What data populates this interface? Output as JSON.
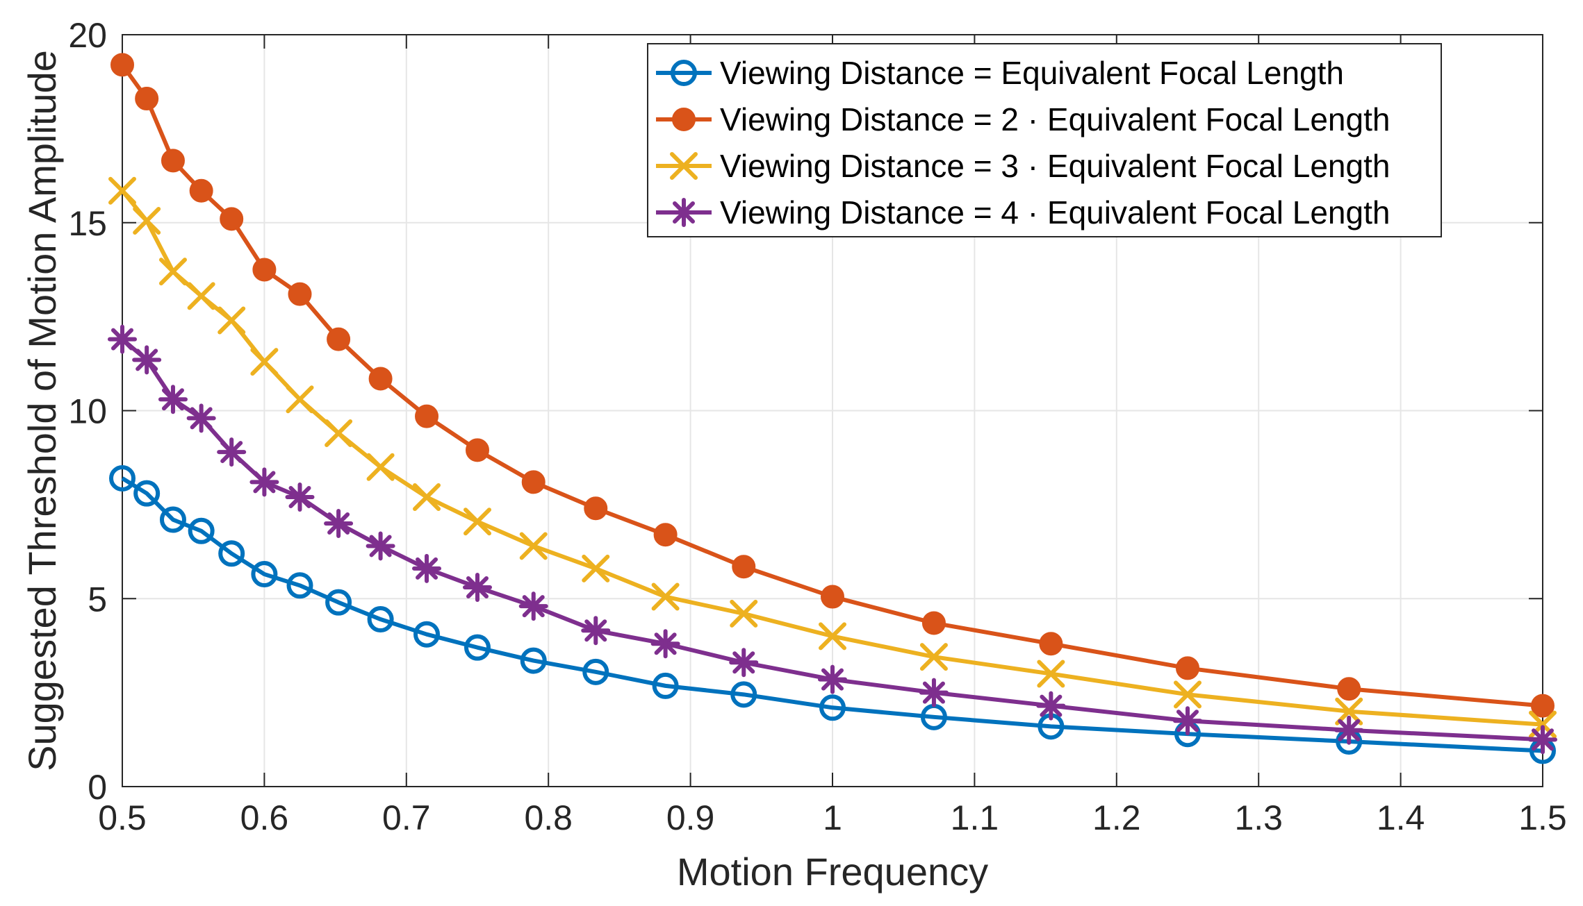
{
  "chart_data": {
    "type": "line",
    "title": "",
    "xlabel": "Motion Frequency",
    "ylabel": "Suggested Threshold of Motion Amplitude",
    "xlim": [
      0.5,
      1.5
    ],
    "ylim": [
      0,
      20
    ],
    "grid": true,
    "legend_position": "top-right",
    "xticks": [
      "0.5",
      "0.6",
      "0.7",
      "0.8",
      "0.9",
      "1",
      "1.1",
      "1.2",
      "1.3",
      "1.4",
      "1.5"
    ],
    "yticks": [
      "0",
      "5",
      "10",
      "15",
      "20"
    ],
    "x": [
      0.5,
      0.5172,
      0.5357,
      0.5556,
      0.5769,
      0.6,
      0.625,
      0.6522,
      0.6818,
      0.7143,
      0.75,
      0.7895,
      0.8333,
      0.8824,
      0.9375,
      1.0,
      1.0714,
      1.1538,
      1.25,
      1.3636,
      1.5
    ],
    "series": [
      {
        "name": "Viewing Distance = Equivalent Focal Length",
        "color": "#0072BD",
        "marker": "circle-open",
        "values": [
          8.2,
          7.8,
          7.1,
          6.8,
          6.2,
          5.65,
          5.35,
          4.9,
          4.45,
          4.05,
          3.7,
          3.35,
          3.05,
          2.68,
          2.45,
          2.1,
          1.85,
          1.6,
          1.4,
          1.2,
          0.95
        ]
      },
      {
        "name": "Viewing Distance = 2  · Equivalent Focal Length",
        "color": "#D95319",
        "marker": "circle-filled",
        "values": [
          19.2,
          18.3,
          16.65,
          15.85,
          15.1,
          13.75,
          13.1,
          11.9,
          10.85,
          9.85,
          8.95,
          8.1,
          7.4,
          6.7,
          5.85,
          5.05,
          4.35,
          3.8,
          3.15,
          2.6,
          2.15
        ]
      },
      {
        "name": "Viewing Distance = 3  · Equivalent Focal Length",
        "color": "#EDB120",
        "marker": "x",
        "values": [
          15.85,
          15.05,
          13.7,
          13.05,
          12.4,
          11.3,
          10.3,
          9.4,
          8.5,
          7.7,
          7.05,
          6.4,
          5.8,
          5.05,
          4.6,
          4.0,
          3.45,
          3.0,
          2.45,
          2.0,
          1.65
        ]
      },
      {
        "name": "Viewing Distance = 4  · Equivalent Focal Length",
        "color": "#7E2F8E",
        "marker": "asterisk",
        "values": [
          11.9,
          11.35,
          10.3,
          9.8,
          8.9,
          8.1,
          7.7,
          7.0,
          6.4,
          5.8,
          5.3,
          4.8,
          4.15,
          3.8,
          3.3,
          2.85,
          2.5,
          2.15,
          1.75,
          1.5,
          1.25
        ]
      }
    ]
  }
}
